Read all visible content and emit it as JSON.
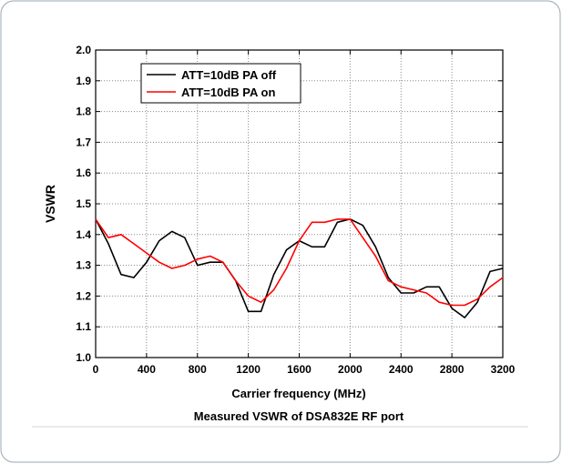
{
  "chart_data": {
    "type": "line",
    "title": "Measured VSWR of DSA832E RF port",
    "x_label": "Carrier frequency (MHz)",
    "y_label": "VSWR",
    "x": [
      0,
      100,
      200,
      300,
      400,
      500,
      600,
      700,
      800,
      900,
      1000,
      1100,
      1200,
      1300,
      1400,
      1500,
      1600,
      1700,
      1800,
      1900,
      2000,
      2100,
      2200,
      2300,
      2400,
      2500,
      2600,
      2700,
      2800,
      2900,
      3000,
      3100,
      3200
    ],
    "series": [
      {
        "name": "ATT=10dB PA off",
        "color": "#000000",
        "values": [
          1.45,
          1.37,
          1.27,
          1.26,
          1.31,
          1.38,
          1.41,
          1.39,
          1.3,
          1.31,
          1.31,
          1.25,
          1.15,
          1.15,
          1.27,
          1.35,
          1.38,
          1.36,
          1.36,
          1.44,
          1.45,
          1.43,
          1.36,
          1.26,
          1.21,
          1.21,
          1.23,
          1.23,
          1.16,
          1.13,
          1.18,
          1.28,
          1.29
        ]
      },
      {
        "name": "ATT=10dB PA on",
        "color": "#ff0000",
        "values": [
          1.45,
          1.39,
          1.4,
          1.37,
          1.34,
          1.31,
          1.29,
          1.3,
          1.32,
          1.33,
          1.31,
          1.25,
          1.2,
          1.18,
          1.22,
          1.29,
          1.38,
          1.44,
          1.44,
          1.45,
          1.45,
          1.39,
          1.33,
          1.25,
          1.23,
          1.22,
          1.21,
          1.18,
          1.17,
          1.17,
          1.19,
          1.23,
          1.26
        ]
      }
    ],
    "xlim": [
      0,
      3200
    ],
    "xticks": [
      0,
      400,
      800,
      1200,
      1600,
      2000,
      2400,
      2800,
      3200
    ],
    "ylim": [
      1.0,
      2.0
    ],
    "yticks": [
      {
        "value": 1.0,
        "label": "1.0"
      },
      1.1,
      1.2,
      1.3,
      1.4,
      1.5,
      1.6,
      1.7,
      1.8,
      1.9,
      {
        "value": 2.0,
        "label": "2.0"
      }
    ],
    "grid": true,
    "legend": "upper left"
  }
}
